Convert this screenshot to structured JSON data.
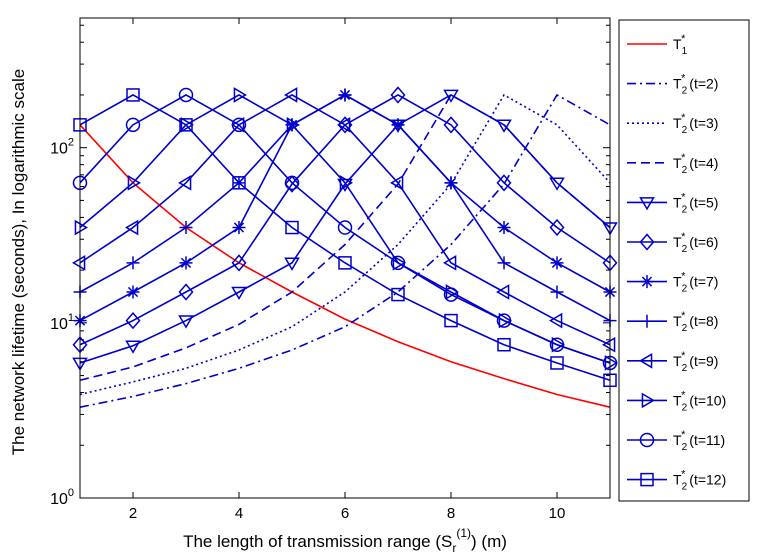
{
  "chart_data": {
    "type": "line",
    "xlabel_prefix": "The length of transmission range (S",
    "xlabel_sub": "r",
    "xlabel_sup": "(1)",
    "xlabel_suffix": ") (m)",
    "ylabel": "The network lifetime (seconds), In logarithmic scale",
    "xlim": [
      1,
      11
    ],
    "ylim": [
      1,
      550
    ],
    "yscale": "log",
    "xticks": [
      "2",
      "4",
      "6",
      "8",
      "10"
    ],
    "yticks": [
      {
        "value": 1,
        "base": "10",
        "exp": "0"
      },
      {
        "value": 10,
        "base": "10",
        "exp": "1"
      },
      {
        "value": 100,
        "base": "10",
        "exp": "2"
      }
    ],
    "x": [
      1,
      2,
      3,
      4,
      5,
      6,
      7,
      8,
      9,
      10,
      11
    ],
    "legend_position": "outside-right",
    "series": [
      {
        "name": "T",
        "sub": "1",
        "sup": "*",
        "suffix": "",
        "color": "#ff0000",
        "dash": "solid",
        "marker": "none",
        "values": [
          135,
          63,
          35,
          22,
          15,
          10.5,
          7.8,
          6.0,
          4.8,
          3.9,
          3.3
        ]
      },
      {
        "name": "T",
        "sub": "2",
        "sup": "*",
        "suffix": " (t=2)",
        "color": "#0000cc",
        "dash": "dashdot",
        "marker": "none",
        "values": [
          3.3,
          3.8,
          4.5,
          5.5,
          7.0,
          9.5,
          15,
          28,
          62,
          200,
          135
        ]
      },
      {
        "name": "T",
        "sub": "2",
        "sup": "*",
        "suffix": " (t=3)",
        "color": "#0000cc",
        "dash": "dotted",
        "marker": "none",
        "values": [
          3.9,
          4.6,
          5.5,
          7.0,
          9.5,
          15,
          28,
          62,
          200,
          135,
          63
        ]
      },
      {
        "name": "T",
        "sub": "2",
        "sup": "*",
        "suffix": " (t=4)",
        "color": "#0000cc",
        "dash": "dashed",
        "marker": "none",
        "values": [
          4.7,
          5.6,
          7.2,
          9.8,
          15,
          28,
          62,
          200,
          135,
          63,
          35
        ]
      },
      {
        "name": "T",
        "sub": "2",
        "sup": "*",
        "suffix": " (t=5)",
        "color": "#0000cc",
        "dash": "solid",
        "marker": "triangle-down",
        "values": [
          5.9,
          7.4,
          10.3,
          15,
          22,
          62,
          135,
          200,
          135,
          63,
          35
        ]
      },
      {
        "name": "T",
        "sub": "2",
        "sup": "*",
        "suffix": " (t=6)",
        "color": "#0000cc",
        "dash": "solid",
        "marker": "diamond",
        "values": [
          7.5,
          10.3,
          15,
          22,
          62,
          135,
          200,
          135,
          63,
          35,
          22
        ]
      },
      {
        "name": "T",
        "sub": "2",
        "sup": "*",
        "suffix": " (t=7)",
        "color": "#0000cc",
        "dash": "solid",
        "marker": "asterisk",
        "values": [
          10.3,
          15,
          22,
          35,
          135,
          200,
          135,
          63,
          35,
          22,
          15
        ]
      },
      {
        "name": "T",
        "sub": "2",
        "sup": "*",
        "suffix": " (t=8)",
        "color": "#0000cc",
        "dash": "solid",
        "marker": "plus",
        "values": [
          15,
          22,
          35,
          63,
          135,
          200,
          135,
          63,
          22,
          15,
          10.3
        ]
      },
      {
        "name": "T",
        "sub": "2",
        "sup": "*",
        "suffix": " (t=9)",
        "color": "#0000cc",
        "dash": "solid",
        "marker": "triangle-left",
        "values": [
          22,
          35,
          63,
          135,
          200,
          135,
          63,
          22,
          15,
          10.3,
          7.5
        ]
      },
      {
        "name": "T",
        "sub": "2",
        "sup": "*",
        "suffix": " (t=10)",
        "color": "#0000cc",
        "dash": "solid",
        "marker": "triangle-right",
        "values": [
          35,
          63,
          135,
          200,
          135,
          63,
          22,
          15,
          10.3,
          7.5,
          5.9
        ]
      },
      {
        "name": "T",
        "sub": "2",
        "sup": "*",
        "suffix": " (t=11)",
        "color": "#0000cc",
        "dash": "solid",
        "marker": "circle",
        "values": [
          63,
          135,
          200,
          135,
          63,
          35,
          22,
          14.5,
          10.3,
          7.5,
          5.9
        ]
      },
      {
        "name": "T",
        "sub": "2",
        "sup": "*",
        "suffix": " (t=12)",
        "color": "#0000cc",
        "dash": "solid",
        "marker": "square",
        "values": [
          135,
          200,
          135,
          63,
          35,
          22,
          14.5,
          10.3,
          7.5,
          5.9,
          4.7
        ]
      }
    ]
  }
}
